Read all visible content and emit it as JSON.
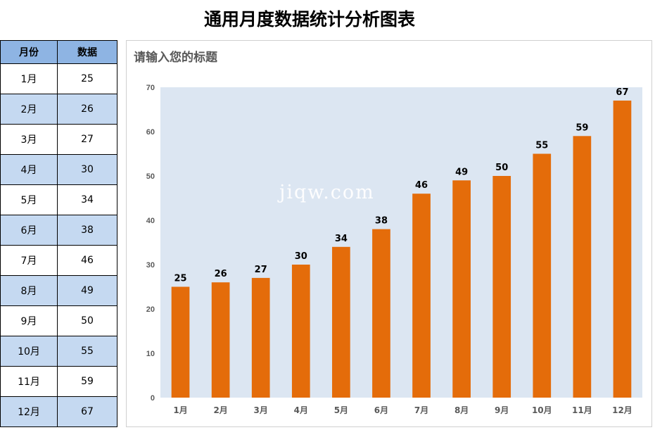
{
  "page": {
    "title": "通用月度数据统计分析图表"
  },
  "table": {
    "headers": {
      "month": "月份",
      "value": "数据"
    },
    "rows": [
      {
        "month": "1月",
        "value": "25"
      },
      {
        "month": "2月",
        "value": "26"
      },
      {
        "month": "3月",
        "value": "27"
      },
      {
        "month": "4月",
        "value": "30"
      },
      {
        "month": "5月",
        "value": "34"
      },
      {
        "month": "6月",
        "value": "38"
      },
      {
        "month": "7月",
        "value": "46"
      },
      {
        "month": "8月",
        "value": "49"
      },
      {
        "month": "9月",
        "value": "50"
      },
      {
        "month": "10月",
        "value": "55"
      },
      {
        "month": "11月",
        "value": "59"
      },
      {
        "month": "12月",
        "value": "67"
      }
    ]
  },
  "watermark": "jiqw.com",
  "colors": {
    "bar": "#e46c0a",
    "plot_background": "#dce6f2",
    "header_background": "#8eb4e3",
    "alt_row_background": "#c5d9f1",
    "axis_text": "#595959"
  },
  "chart_data": {
    "type": "bar",
    "title": "请输入您的标题",
    "categories": [
      "1月",
      "2月",
      "3月",
      "4月",
      "5月",
      "6月",
      "7月",
      "8月",
      "9月",
      "10月",
      "11月",
      "12月"
    ],
    "values": [
      25,
      26,
      27,
      30,
      34,
      38,
      46,
      49,
      50,
      55,
      59,
      67
    ],
    "xlabel": "",
    "ylabel": "",
    "ylim": [
      0,
      70
    ],
    "yticks": [
      0,
      10,
      20,
      30,
      40,
      50,
      60,
      70
    ],
    "grid": false,
    "data_labels": true,
    "legend": "none"
  }
}
